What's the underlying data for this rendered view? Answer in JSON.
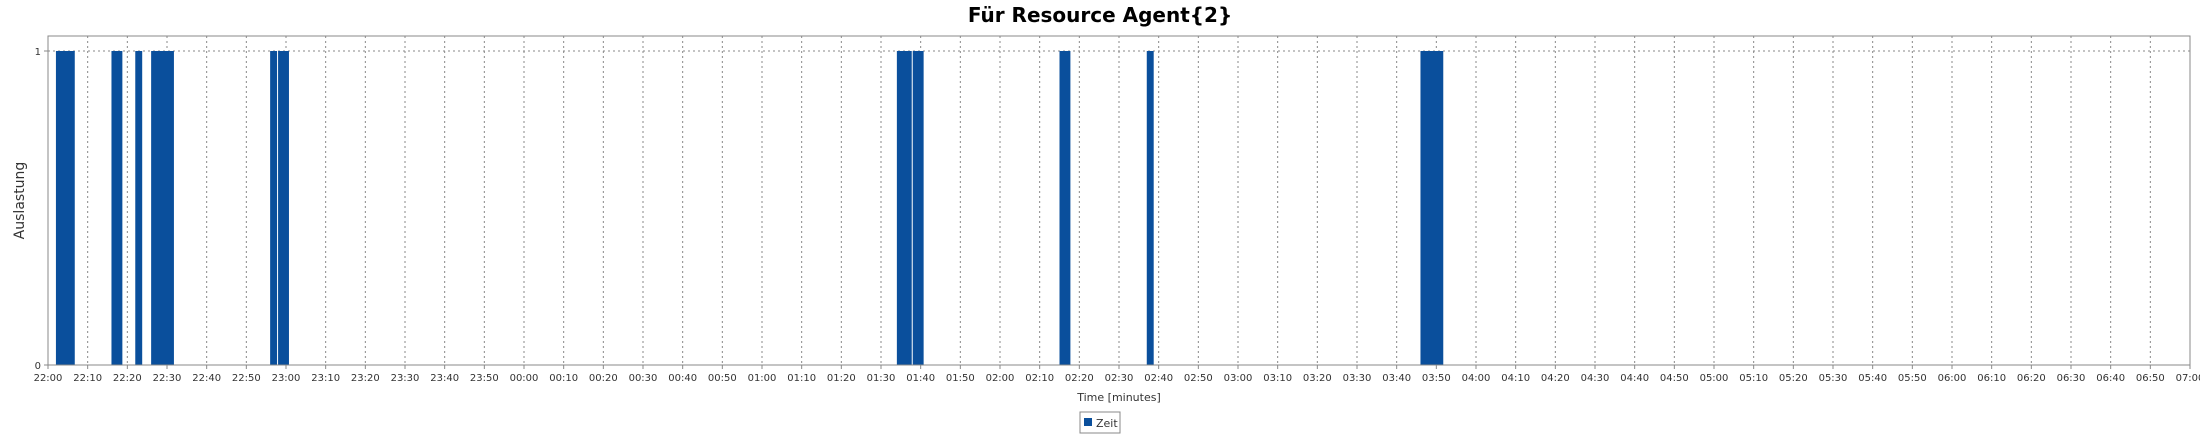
{
  "chart_data": {
    "type": "bar",
    "title": "Für Resource Agent{2}",
    "xlabel": "Time [minutes]",
    "ylabel": "Auslastung",
    "ylim": [
      0,
      1
    ],
    "y_ticks": [
      "0",
      "1"
    ],
    "x_range_minutes": [
      0,
      540
    ],
    "x_tick_labels": [
      "22:00",
      "22:10",
      "22:20",
      "22:30",
      "22:40",
      "22:50",
      "23:00",
      "23:10",
      "23:20",
      "23:30",
      "23:40",
      "23:50",
      "00:00",
      "00:10",
      "00:20",
      "00:30",
      "00:40",
      "00:50",
      "01:00",
      "01:10",
      "01:20",
      "01:30",
      "01:40",
      "01:50",
      "02:00",
      "02:10",
      "02:20",
      "02:30",
      "02:40",
      "02:50",
      "03:00",
      "03:10",
      "03:20",
      "03:30",
      "03:40",
      "03:50",
      "04:00",
      "04:10",
      "04:20",
      "04:30",
      "04:40",
      "04:50",
      "05:00",
      "05:10",
      "05:20",
      "05:30",
      "05:40",
      "05:50",
      "06:00",
      "06:10",
      "06:20",
      "06:30",
      "06:40",
      "06:50",
      "07:00"
    ],
    "grid": true,
    "legend_position": "bottom-center",
    "series": [
      {
        "name": "Zeit",
        "color": "#0a4f9c",
        "bars": [
          {
            "start": "22:02",
            "end": "22:07",
            "value": 1
          },
          {
            "start": "22:16",
            "end": "22:19",
            "value": 1
          },
          {
            "start": "22:22",
            "end": "22:24",
            "value": 1
          },
          {
            "start": "22:26",
            "end": "22:32",
            "value": 1
          },
          {
            "start": "22:56",
            "end": "22:58",
            "value": 1
          },
          {
            "start": "22:58",
            "end": "23:01",
            "value": 1
          },
          {
            "start": "01:34",
            "end": "01:38",
            "value": 1
          },
          {
            "start": "01:38",
            "end": "01:41",
            "value": 1
          },
          {
            "start": "02:15",
            "end": "02:18",
            "value": 1
          },
          {
            "start": "02:37",
            "end": "02:39",
            "value": 1
          },
          {
            "start": "03:46",
            "end": "03:52",
            "value": 1
          }
        ]
      }
    ]
  }
}
